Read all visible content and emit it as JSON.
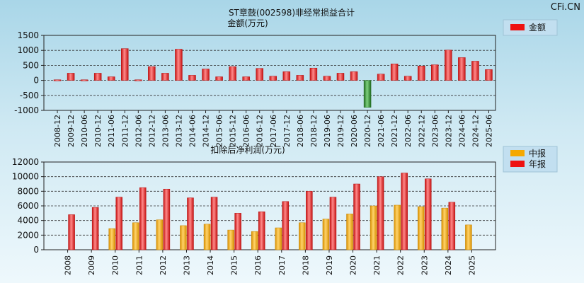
{
  "header": {
    "title": "ST章鼓(002598)非经常损益合计",
    "watermark": "CFi.CN"
  },
  "chart_data": [
    {
      "type": "bar",
      "title": "金额(万元)",
      "legend": {
        "label": "金额",
        "color": "#ee1111",
        "placement": "top-right"
      },
      "negative_color": "#2e8b2e",
      "ylim": [
        -1000,
        1500
      ],
      "yticks": [
        "1500",
        "1000",
        "500",
        "0",
        "-500",
        "-1000"
      ],
      "categories": [
        "2008-12",
        "2009-12",
        "2010-06",
        "2010-12",
        "2011-06",
        "2011-12",
        "2012-06",
        "2012-12",
        "2013-06",
        "2013-12",
        "2014-06",
        "2014-12",
        "2015-06",
        "2015-12",
        "2016-06",
        "2016-12",
        "2017-06",
        "2017-12",
        "2018-06",
        "2018-12",
        "2019-06",
        "2019-12",
        "2020-06",
        "2020-12",
        "2021-06",
        "2021-12",
        "2022-06",
        "2022-12",
        "2023-06",
        "2023-12",
        "2024-06",
        "2024-12",
        "2025-06"
      ],
      "values": [
        20,
        240,
        20,
        240,
        120,
        1060,
        20,
        460,
        240,
        1040,
        170,
        380,
        120,
        460,
        120,
        400,
        140,
        290,
        170,
        410,
        140,
        240,
        290,
        -900,
        210,
        550,
        140,
        480,
        520,
        1010,
        760,
        640,
        360
      ]
    },
    {
      "type": "bar",
      "title": "扣除后净利润(万元)",
      "ylim": [
        0,
        12000
      ],
      "yticks": [
        "12000",
        "10000",
        "8000",
        "6000",
        "4000",
        "2000",
        "0"
      ],
      "categories": [
        "2008",
        "2009",
        "2010",
        "2011",
        "2012",
        "2013",
        "2014",
        "2015",
        "2016",
        "2017",
        "2018",
        "2019",
        "2020",
        "2021",
        "2022",
        "2023",
        "2024",
        "2025"
      ],
      "series": [
        {
          "name": "中报",
          "color": "#f5a800",
          "values": [
            null,
            null,
            2900,
            3700,
            4100,
            3300,
            3500,
            2700,
            2500,
            3000,
            3700,
            4200,
            4900,
            6000,
            6100,
            5900,
            5700,
            3400
          ]
        },
        {
          "name": "年报",
          "color": "#ee1111",
          "values": [
            4800,
            5800,
            7200,
            8500,
            8300,
            7100,
            7200,
            5000,
            5200,
            6600,
            8000,
            7200,
            9000,
            10000,
            10500,
            9700,
            6500,
            null
          ]
        }
      ]
    }
  ]
}
